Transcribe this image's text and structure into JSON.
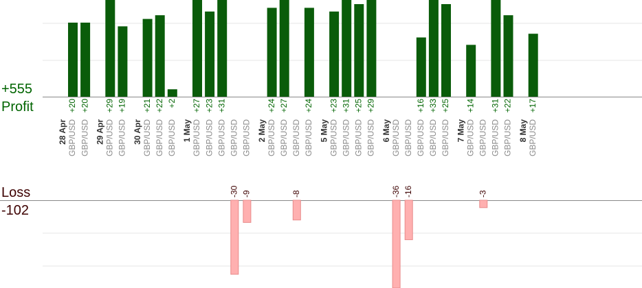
{
  "summary": {
    "profit_label": "Profit",
    "profit_total": "+555",
    "loss_label": "Loss",
    "loss_total": "-102"
  },
  "colors": {
    "profit_bar": "#0a5c0a",
    "profit_text": "#006400",
    "loss_bar": "#ffb0b0",
    "loss_text": "#3d0000",
    "pair_text": "#8a8a8a",
    "date_text": "#333333",
    "grid": "#e6e6e6",
    "axis": "#888888"
  },
  "chart_data": {
    "type": "bar",
    "pair": "GBP/USD",
    "ylim_profit": [
      0,
      35
    ],
    "ylim_loss": [
      -30,
      0
    ],
    "dates": [
      "28 Apr",
      "29 Apr",
      "30 Apr",
      "1 May",
      "2 May",
      "5 May",
      "6 May",
      "7 May",
      "8 May"
    ],
    "groups": [
      {
        "date": "28 Apr",
        "trades": [
          20,
          20
        ]
      },
      {
        "date": "29 Apr",
        "trades": [
          29,
          19
        ]
      },
      {
        "date": "30 Apr",
        "trades": [
          21,
          22,
          2
        ]
      },
      {
        "date": "1 May",
        "trades": [
          27,
          23,
          31,
          -30,
          -9
        ]
      },
      {
        "date": "2 May",
        "trades": [
          24,
          27,
          -8,
          24
        ]
      },
      {
        "date": "5 May",
        "trades": [
          23,
          31,
          25,
          29
        ]
      },
      {
        "date": "6 May",
        "trades": [
          -36,
          -16,
          16,
          33,
          25
        ]
      },
      {
        "date": "7 May",
        "trades": [
          14,
          -3,
          31,
          22
        ]
      },
      {
        "date": "8 May",
        "trades": [
          17
        ]
      }
    ]
  }
}
